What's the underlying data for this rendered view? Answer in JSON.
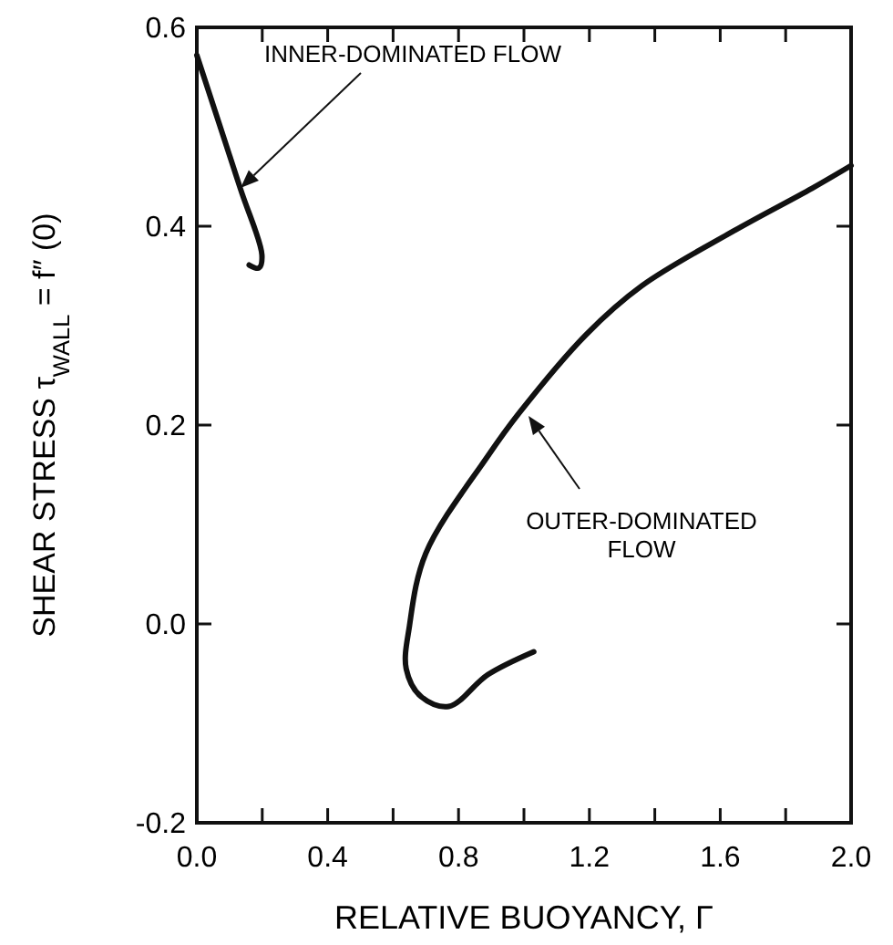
{
  "chart_data": {
    "type": "line",
    "xlabel": "RELATIVE BUOYANCY, Γ",
    "ylabel": "SHEAR STRESS   τ$_{WALL}$ = f″ (0)",
    "xlim": [
      0,
      2.0
    ],
    "ylim": [
      -0.2,
      0.6
    ],
    "xticks": [
      {
        "value": 0,
        "label": "0.0"
      },
      {
        "value": 0.2,
        "label": null
      },
      0.4,
      {
        "value": 0.6,
        "label": null
      },
      0.8,
      {
        "value": 1.0,
        "label": null
      },
      1.2,
      {
        "value": 1.4,
        "label": null
      },
      1.6,
      {
        "value": 1.8,
        "label": null
      },
      {
        "value": 2.0,
        "label": "2.0"
      }
    ],
    "yticks": [
      {
        "value": -0.2,
        "label": "-0.2"
      },
      {
        "value": 0,
        "label": "0.0"
      },
      0.2,
      0.4,
      0.6
    ],
    "grid": false,
    "marker": "none",
    "line_style": "solid",
    "series": [
      {
        "color": "#111111",
        "x": [
          0,
          0.133,
          0.199,
          0.19,
          0.16
        ],
        "values": [
          0.572,
          0.438,
          0.371,
          0.358,
          0.361
        ]
      },
      {
        "color": "#111111",
        "x": [
          1.03,
          0.89,
          0.77,
          0.685,
          0.64,
          0.65,
          0.7,
          0.89,
          0.985,
          1.19,
          1.36,
          1.64,
          1.88,
          2.0
        ],
        "values": [
          -0.028,
          -0.051,
          -0.083,
          -0.073,
          -0.045,
          -0.002,
          0.071,
          0.169,
          0.212,
          0.291,
          0.34,
          0.395,
          0.438,
          0.461
        ]
      }
    ],
    "annotations": [
      "INNER-DOMINATED FLOW",
      "OUTER-DOMINATED\nFLOW"
    ]
  }
}
